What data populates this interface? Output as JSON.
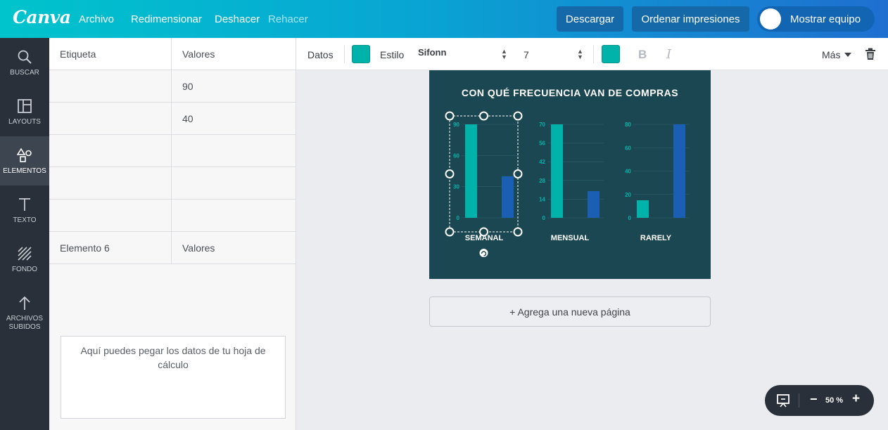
{
  "topbar": {
    "logo": "Canva",
    "menu": [
      {
        "label": "Archivo"
      },
      {
        "label": "Redimensionar"
      },
      {
        "label": "Deshacer"
      },
      {
        "label": "Rehacer"
      }
    ],
    "download": "Descargar",
    "print": "Ordenar impresiones",
    "team": "Mostrar equipo"
  },
  "sidebar": {
    "items": [
      {
        "label": "BUSCAR",
        "icon": "search-icon"
      },
      {
        "label": "LAYOUTS",
        "icon": "layouts-icon"
      },
      {
        "label": "ELEMENTOS",
        "icon": "shapes-icon"
      },
      {
        "label": "TEXTO",
        "icon": "text-icon"
      },
      {
        "label": "FONDO",
        "icon": "background-icon"
      },
      {
        "label1": "ARCHIVOS",
        "label2": "SUBIDOS",
        "icon": "upload-icon"
      }
    ]
  },
  "datapanel": {
    "rows": [
      {
        "label": "Etiqueta",
        "value": "Valores"
      },
      {
        "label": "",
        "value": "90"
      },
      {
        "label": "",
        "value": "40"
      },
      {
        "label": "",
        "value": ""
      },
      {
        "label": "",
        "value": ""
      },
      {
        "label": "",
        "value": ""
      },
      {
        "label": "Elemento 6",
        "value": "Valores"
      }
    ],
    "paste_hint": "Aquí puedes pegar los datos de tu hoja de cálculo"
  },
  "toolbar": {
    "data": "Datos",
    "style": "Estilo",
    "font": "Sifonn",
    "size": "7",
    "more": "Más",
    "bold": "B",
    "italic": "I",
    "swatch_color": "#00b3aa"
  },
  "canvas": {
    "add_page": "+ Agrega una nueva página",
    "zoom": "50 %",
    "zoom_minus": "−",
    "zoom_plus": "+"
  },
  "chart_data": {
    "type": "bar",
    "title": "CON QUÉ FRECUENCIA VAN DE COMPRAS",
    "colors": {
      "background": "#1b4752",
      "series1": "#00b3aa",
      "series2": "#1a5fb4",
      "tick": "#00b3aa"
    },
    "panels": [
      {
        "label": "SEMANAL",
        "ylim": [
          0,
          90
        ],
        "ticks": [
          "0",
          "30",
          "60",
          "90"
        ],
        "values": [
          90,
          40
        ]
      },
      {
        "label": "MENSUAL",
        "ylim": [
          0,
          70
        ],
        "ticks": [
          "0",
          "14",
          "28",
          "42",
          "56",
          "70"
        ],
        "values": [
          70,
          20
        ]
      },
      {
        "label": "RARELY",
        "ylim": [
          0,
          80
        ],
        "ticks": [
          "0",
          "20",
          "40",
          "60",
          "80"
        ],
        "values": [
          15,
          80
        ]
      }
    ]
  }
}
